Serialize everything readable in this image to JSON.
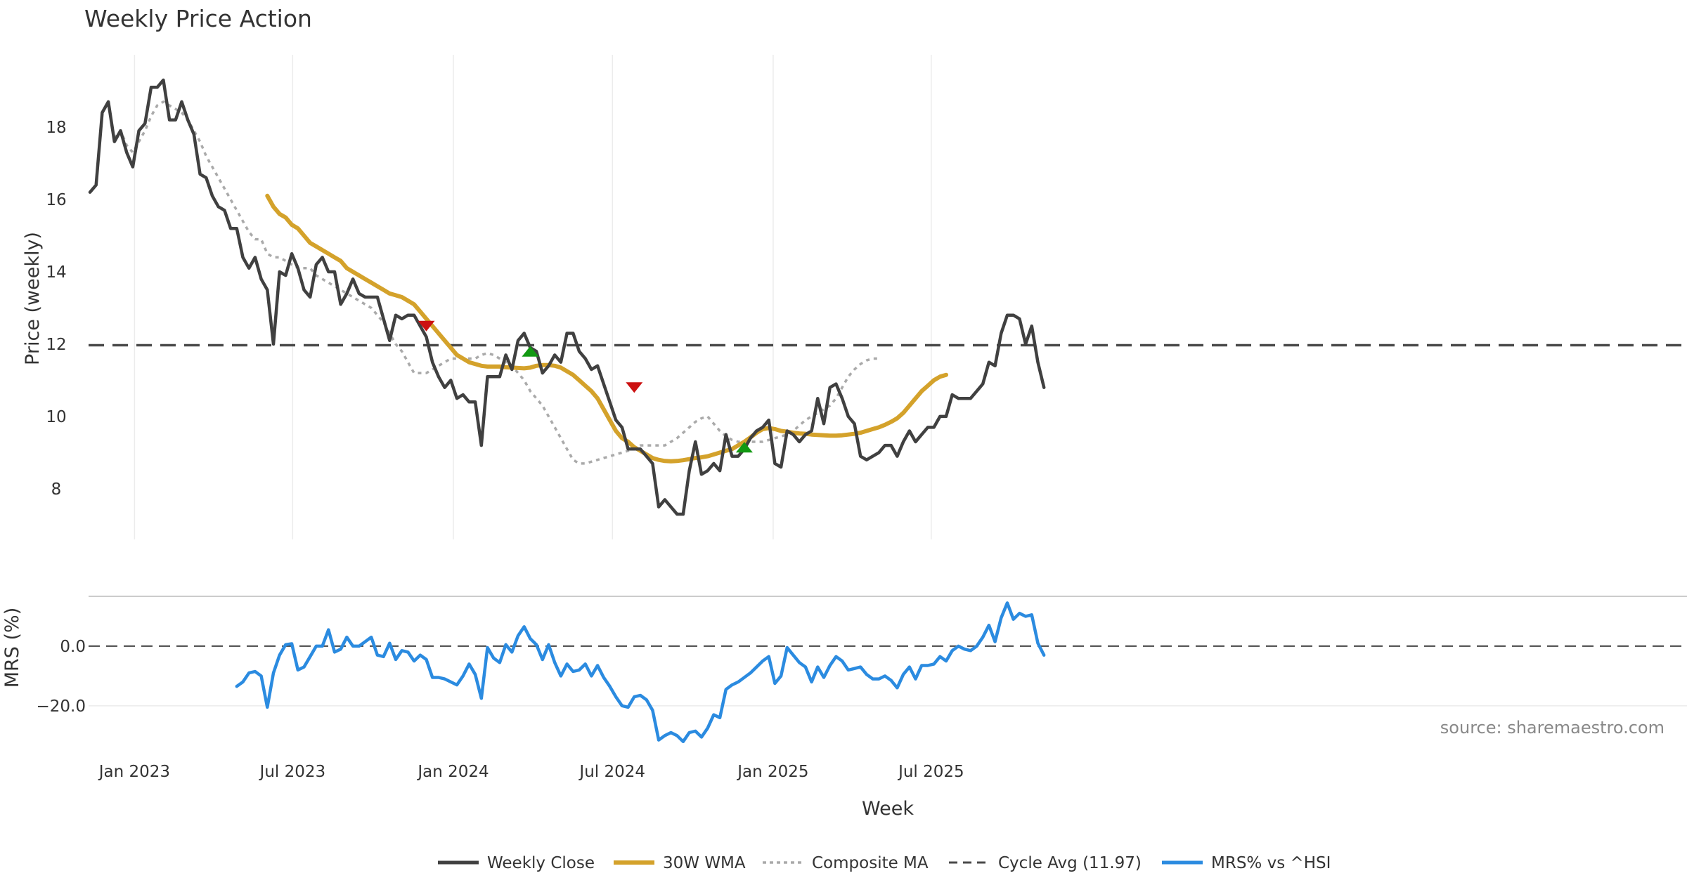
{
  "chart_data": {
    "type": "line",
    "title": "Weekly Price Action",
    "xlabel": "Week",
    "x_start": "2022-11-11",
    "x_step_days": 7,
    "x_ticks": [
      "Jan 2023",
      "Jul 2023",
      "Jan 2024",
      "Jul 2024",
      "Jan 2025",
      "Jul 2025"
    ],
    "source": "source: sharemaestro.com",
    "legend_position": "bottom",
    "legend": [
      "Weekly Close",
      "30W WMA",
      "Composite MA",
      "Cycle Avg (11.97)",
      "MRS% vs ^HSI"
    ],
    "price_panel": {
      "ylabel": "Price (weekly)",
      "ylim": [
        6.6,
        20.0
      ],
      "yticks": [
        8,
        10,
        12,
        14,
        16,
        18
      ],
      "cycle_avg": 11.97,
      "grid": "x",
      "series": [
        {
          "name": "Weekly Close",
          "color": "#404040",
          "values": [
            16.2,
            16.4,
            18.4,
            18.7,
            17.6,
            17.9,
            17.3,
            16.9,
            17.9,
            18.1,
            19.1,
            19.1,
            19.3,
            18.2,
            18.2,
            18.7,
            18.2,
            17.8,
            16.7,
            16.6,
            16.1,
            15.8,
            15.7,
            15.2,
            15.2,
            14.4,
            14.1,
            14.4,
            13.8,
            13.5,
            12.0,
            14.0,
            13.9,
            14.5,
            14.1,
            13.5,
            13.3,
            14.2,
            14.4,
            14.0,
            14.0,
            13.1,
            13.4,
            13.8,
            13.4,
            13.3,
            13.3,
            13.3,
            12.7,
            12.1,
            12.8,
            12.7,
            12.8,
            12.8,
            12.5,
            12.2,
            11.5,
            11.1,
            10.8,
            11.0,
            10.5,
            10.6,
            10.4,
            10.4,
            9.2,
            11.1,
            11.1,
            11.1,
            11.7,
            11.3,
            12.1,
            12.3,
            11.9,
            11.8,
            11.2,
            11.4,
            11.7,
            11.5,
            12.3,
            12.3,
            11.8,
            11.6,
            11.3,
            11.4,
            10.9,
            10.4,
            9.9,
            9.7,
            9.1,
            9.1,
            9.1,
            8.9,
            8.7,
            7.5,
            7.7,
            7.5,
            7.3,
            7.3,
            8.5,
            9.3,
            8.4,
            8.5,
            8.7,
            8.5,
            9.5,
            8.9,
            8.9,
            9.1,
            9.4,
            9.6,
            9.7,
            9.9,
            8.7,
            8.6,
            9.6,
            9.5,
            9.3,
            9.5,
            9.6,
            10.5,
            9.8,
            10.8,
            10.9,
            10.5,
            10.0,
            9.8,
            8.9,
            8.8,
            8.9,
            9.0,
            9.2,
            9.2,
            8.9,
            9.3,
            9.6,
            9.3,
            9.5,
            9.7,
            9.7,
            10.0,
            10.0,
            10.6,
            10.5,
            10.5,
            10.5,
            10.7,
            10.9,
            11.5,
            11.4,
            12.3,
            12.8,
            12.8,
            12.7,
            12.0,
            12.5,
            11.5,
            10.8
          ]
        },
        {
          "name": "30W WMA",
          "color": "#d4a22b",
          "start_index": 29,
          "values": [
            16.1,
            15.8,
            15.6,
            15.5,
            15.3,
            15.2,
            15.0,
            14.8,
            14.7,
            14.6,
            14.5,
            14.4,
            14.3,
            14.1,
            14.0,
            13.9,
            13.8,
            13.7,
            13.6,
            13.5,
            13.4,
            13.35,
            13.3,
            13.2,
            13.1,
            12.9,
            12.7,
            12.5,
            12.3,
            12.1,
            11.9,
            11.7,
            11.6,
            11.5,
            11.45,
            11.4,
            11.38,
            11.38,
            11.38,
            11.36,
            11.35,
            11.34,
            11.33,
            11.35,
            11.4,
            11.42,
            11.42,
            11.4,
            11.35,
            11.25,
            11.15,
            11.0,
            10.85,
            10.7,
            10.5,
            10.2,
            9.9,
            9.6,
            9.4,
            9.3,
            9.15,
            9.05,
            8.95,
            8.85,
            8.8,
            8.77,
            8.76,
            8.77,
            8.79,
            8.82,
            8.85,
            8.87,
            8.9,
            8.95,
            9.0,
            9.05,
            9.1,
            9.2,
            9.3,
            9.42,
            9.55,
            9.65,
            9.68,
            9.65,
            9.6,
            9.58,
            9.55,
            9.53,
            9.52,
            9.5,
            9.49,
            9.48,
            9.47,
            9.47,
            9.48,
            9.5,
            9.52,
            9.55,
            9.6,
            9.65,
            9.7,
            9.77,
            9.85,
            9.95,
            10.1,
            10.3,
            10.5,
            10.7,
            10.85,
            11.0,
            11.1,
            11.15
          ]
        },
        {
          "name": "Composite MA",
          "color": "#aaaaaa",
          "start_index": 4,
          "values": [
            17.7,
            17.9,
            17.5,
            17.3,
            17.6,
            17.9,
            18.3,
            18.6,
            18.7,
            18.6,
            18.5,
            18.4,
            18.2,
            17.9,
            17.6,
            17.2,
            16.9,
            16.6,
            16.3,
            16.0,
            15.7,
            15.4,
            15.1,
            14.9,
            14.9,
            14.5,
            14.4,
            14.4,
            14.3,
            14.2,
            14.1,
            14.1,
            14.1,
            13.9,
            13.8,
            13.7,
            13.6,
            13.5,
            13.4,
            13.3,
            13.2,
            13.1,
            13.0,
            12.8,
            12.6,
            12.3,
            12.0,
            11.8,
            11.5,
            11.2,
            11.2,
            11.2,
            11.3,
            11.4,
            11.5,
            11.6,
            11.6,
            11.6,
            11.6,
            11.6,
            11.7,
            11.75,
            11.7,
            11.6,
            11.5,
            11.4,
            11.2,
            11.0,
            10.7,
            10.5,
            10.3,
            10.0,
            9.7,
            9.4,
            9.1,
            8.8,
            8.7,
            8.7,
            8.75,
            8.8,
            8.85,
            8.9,
            8.95,
            9.0,
            9.05,
            9.1,
            9.2,
            9.2,
            9.2,
            9.2,
            9.2,
            9.3,
            9.4,
            9.55,
            9.7,
            9.85,
            9.95,
            10.0,
            9.8,
            9.6,
            9.45,
            9.35,
            9.3,
            9.3,
            9.3,
            9.3,
            9.3,
            9.35,
            9.4,
            9.45,
            9.5,
            9.6,
            9.75,
            9.9,
            10.0,
            10.1,
            10.2,
            10.3,
            10.5,
            10.8,
            11.1,
            11.3,
            11.45,
            11.55,
            11.6,
            11.6
          ]
        }
      ],
      "markers": [
        {
          "type": "sell",
          "index": 55,
          "value": 12.5,
          "color": "#cc1111"
        },
        {
          "type": "buy",
          "index": 72,
          "value": 11.8,
          "color": "#129912"
        },
        {
          "type": "sell",
          "index": 89,
          "value": 10.8,
          "color": "#cc1111"
        },
        {
          "type": "buy",
          "index": 107,
          "value": 9.15,
          "color": "#129912"
        }
      ]
    },
    "mrs_panel": {
      "ylabel": "MRS (%)",
      "ylim": [
        -33,
        16
      ],
      "yticks": [
        0.0,
        -20.0
      ],
      "ytick_labels": [
        "0.0",
        "−20.0"
      ],
      "series": [
        {
          "name": "MRS% vs ^HSI",
          "color": "#2b8be0",
          "start_index": 24,
          "values": [
            -13.5,
            -12.0,
            -9.0,
            -8.5,
            -10.0,
            -20.5,
            -9.0,
            -3.0,
            0.5,
            0.8,
            -8.0,
            -7.0,
            -3.5,
            0.0,
            0.0,
            5.5,
            -2.0,
            -1.0,
            3.0,
            0.0,
            0.0,
            1.5,
            3.0,
            -3.0,
            -3.5,
            1.0,
            -4.5,
            -1.5,
            -2.0,
            -5.0,
            -3.0,
            -4.5,
            -10.5,
            -10.5,
            -11.0,
            -12.0,
            -13.0,
            -10.0,
            -6.0,
            -9.5,
            -17.5,
            -0.5,
            -4.0,
            -5.5,
            0.5,
            -2.0,
            3.5,
            6.5,
            2.5,
            0.5,
            -4.5,
            0.5,
            -5.5,
            -10.0,
            -6.0,
            -8.5,
            -8.0,
            -6.0,
            -10.0,
            -6.5,
            -10.5,
            -13.5,
            -17.0,
            -20.0,
            -20.5,
            -17.0,
            -16.5,
            -18.0,
            -21.5,
            -31.5,
            -30.0,
            -29.0,
            -30.0,
            -32.0,
            -29.0,
            -28.5,
            -30.5,
            -27.5,
            -23.0,
            -24.0,
            -14.5,
            -13.0,
            -12.0,
            -10.5,
            -9.0,
            -7.0,
            -5.0,
            -3.5,
            -12.5,
            -10.0,
            -0.5,
            -3.0,
            -5.5,
            -7.0,
            -12.0,
            -7.0,
            -10.5,
            -6.5,
            -3.5,
            -5.0,
            -8.0,
            -7.5,
            -7.0,
            -9.5,
            -11.0,
            -11.0,
            -10.0,
            -11.5,
            -14.0,
            -9.5,
            -7.0,
            -11.0,
            -6.5,
            -6.5,
            -6.0,
            -3.5,
            -5.0,
            -1.5,
            0.0,
            -1.0,
            -1.5,
            0.0,
            3.0,
            7.0,
            1.5,
            9.5,
            14.5,
            9.0,
            11.0,
            10.0,
            10.5,
            1.0,
            -3.0
          ]
        }
      ]
    }
  }
}
